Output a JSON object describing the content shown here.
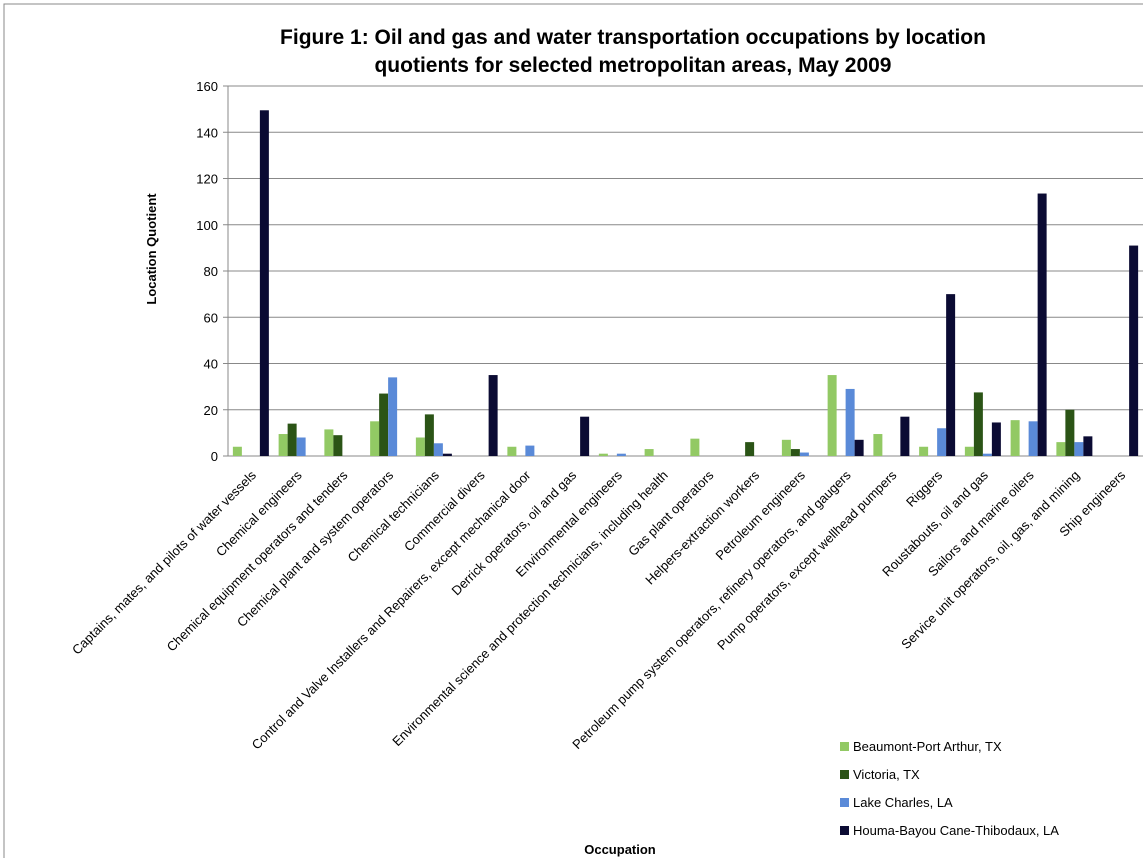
{
  "chart_data": {
    "type": "bar",
    "title": [
      "Figure 1:  Oil and gas and water transportation occupations by location",
      "quotients for selected metropolitan areas, May 2009"
    ],
    "x_label": "Occupation",
    "y_label": "Location Quotient",
    "categories": [
      "Captains, mates, and pilots of water vessels",
      "Chemical engineers",
      "Chemical equipment operators and tenders",
      "Chemical plant and system operators",
      "Chemical technicians",
      "Commercial divers",
      "Control and Valve Installers and Repairers, except mechanical door",
      "Derrick operators, oil and gas",
      "Environmental engineers",
      "Environmental science and protection technicians, including health",
      "Gas plant operators",
      "Helpers-extraction workers",
      "Petroleum engineers",
      "Petroleum pump system operators, refinery operators, and gaugers",
      "Pump operators, except wellhead pumpers",
      "Riggers",
      "Roustabouts, oil and gas",
      "Sailors and marine oilers",
      "Service unit operators, oil, gas, and mining",
      "Ship engineers"
    ],
    "series": [
      {
        "name": "Beaumont-Port Arthur,  TX",
        "color": "#92c964",
        "values": [
          4,
          9.5,
          11.5,
          15,
          8,
          0,
          4,
          0,
          1,
          3,
          7.5,
          0,
          7,
          35,
          9.5,
          4,
          4,
          15.5,
          6,
          0
        ]
      },
      {
        "name": "Victoria, TX",
        "color": "#2b5416",
        "values": [
          0,
          14,
          9,
          27,
          18,
          0,
          0,
          0,
          0,
          0,
          0,
          6,
          3,
          0,
          0,
          0,
          27.5,
          0,
          20,
          0
        ]
      },
      {
        "name": "Lake Charles,  LA",
        "color": "#5a8ad8",
        "values": [
          0,
          8,
          0,
          34,
          5.5,
          0,
          4.5,
          0,
          1,
          0,
          0,
          0,
          1.5,
          29,
          0,
          12,
          1,
          15,
          6,
          0
        ]
      },
      {
        "name": "Houma-Bayou Cane-Thibodaux, LA",
        "color": "#0b0b33",
        "values": [
          149.5,
          0,
          0,
          0,
          1,
          35,
          0,
          17,
          0,
          0,
          0,
          0,
          0,
          7,
          17,
          70,
          14.5,
          113.5,
          8.5,
          91
        ]
      }
    ],
    "ylim": [
      0,
      160
    ],
    "yticks": [
      0,
      20,
      40,
      60,
      80,
      100,
      120,
      140,
      160
    ],
    "grid": true
  }
}
